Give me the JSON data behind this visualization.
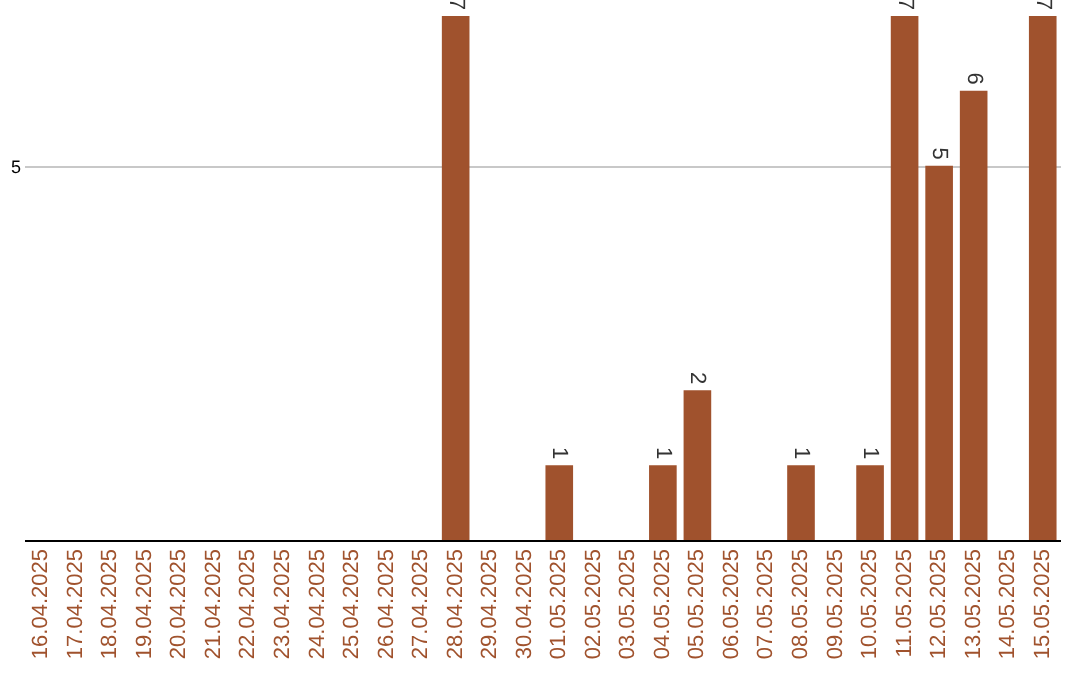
{
  "chart_data": {
    "type": "bar",
    "categories": [
      "16.04.2025",
      "17.04.2025",
      "18.04.2025",
      "19.04.2025",
      "20.04.2025",
      "21.04.2025",
      "22.04.2025",
      "23.04.2025",
      "24.04.2025",
      "25.04.2025",
      "26.04.2025",
      "27.04.2025",
      "28.04.2025",
      "29.04.2025",
      "30.04.2025",
      "01.05.2025",
      "02.05.2025",
      "03.05.2025",
      "04.05.2025",
      "05.05.2025",
      "06.05.2025",
      "07.05.2025",
      "08.05.2025",
      "09.05.2025",
      "10.05.2025",
      "11.05.2025",
      "12.05.2025",
      "13.05.2025",
      "14.05.2025",
      "15.05.2025"
    ],
    "values": [
      null,
      null,
      null,
      null,
      null,
      null,
      null,
      null,
      null,
      null,
      null,
      null,
      7,
      null,
      null,
      1,
      null,
      null,
      1,
      2,
      null,
      null,
      1,
      null,
      1,
      7,
      5,
      6,
      null,
      7
    ],
    "data_labels": true,
    "color": "#a0522d",
    "ylim": [
      0,
      7
    ],
    "yticks": [
      5
    ],
    "grid": "y"
  }
}
